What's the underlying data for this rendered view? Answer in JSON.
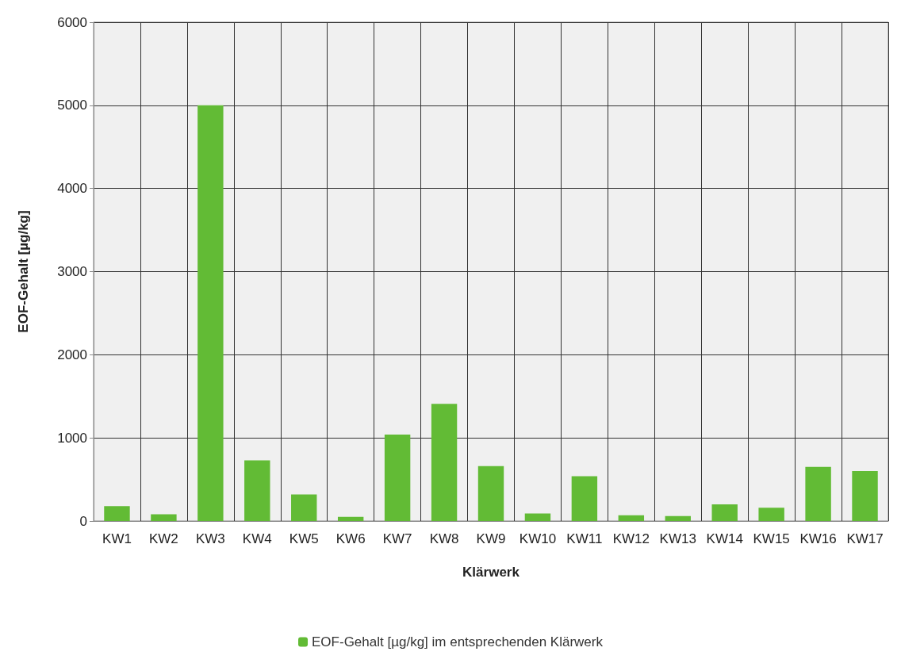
{
  "chart_data": {
    "type": "bar",
    "xlabel": "Klärwerk",
    "ylabel": "EOF-Gehalt [µg/kg]",
    "categories": [
      "KW1",
      "KW2",
      "KW3",
      "KW4",
      "KW5",
      "KW6",
      "KW7",
      "KW8",
      "KW9",
      "KW10",
      "KW11",
      "KW12",
      "KW13",
      "KW14",
      "KW15",
      "KW16",
      "KW17"
    ],
    "series": [
      {
        "name": "EOF-Gehalt [µg/kg] im entsprechenden Klärwerk",
        "color": "#62bb35",
        "values": [
          180,
          80,
          5000,
          730,
          320,
          50,
          1040,
          1410,
          660,
          90,
          540,
          70,
          60,
          200,
          160,
          650,
          600
        ]
      }
    ],
    "ylim": [
      0,
      6000
    ],
    "yticks": [
      0,
      1000,
      2000,
      3000,
      4000,
      5000,
      6000
    ],
    "grid": true,
    "legend": "bottom"
  }
}
